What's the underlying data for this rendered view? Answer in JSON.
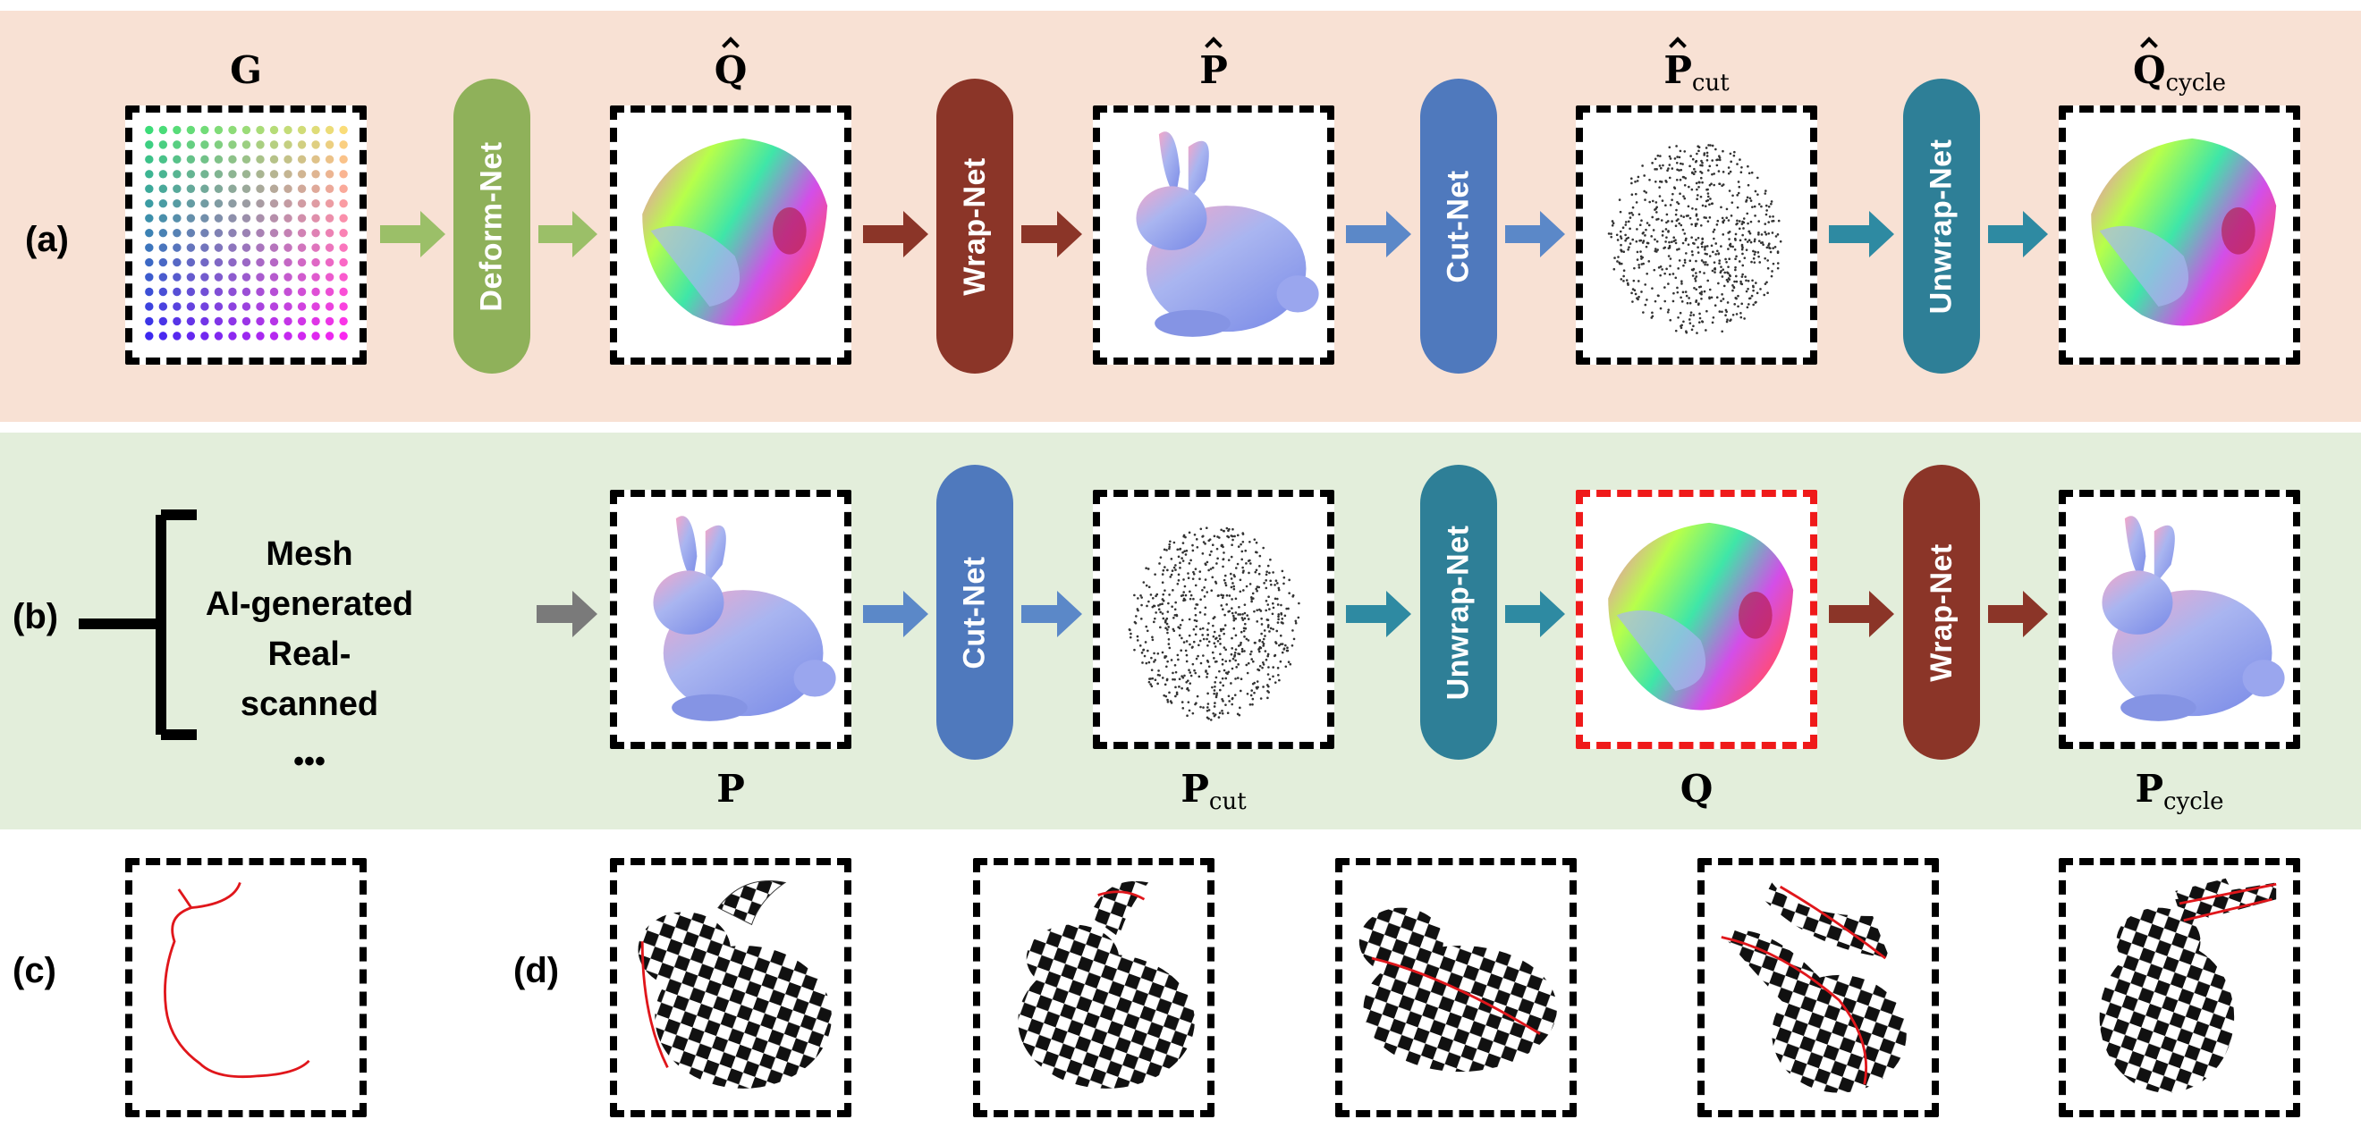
{
  "rows": {
    "a": {
      "label": "(a)",
      "nets": [
        "Deform-Net",
        "Wrap-Net",
        "Cut-Net",
        "Unwrap-Net"
      ],
      "labels": [
        {
          "main": "G",
          "sub": ""
        },
        {
          "main": "Q",
          "sub": ""
        },
        {
          "main": "P",
          "sub": ""
        },
        {
          "main": "P",
          "sub": "cut"
        },
        {
          "main": "Q",
          "sub": "cycle"
        }
      ]
    },
    "b": {
      "label": "(b)",
      "sources": [
        "Mesh",
        "AI-generated",
        "Real-scanned"
      ],
      "ellipsis": "•••",
      "nets": [
        "Cut-Net",
        "Unwrap-Net",
        "Wrap-Net"
      ],
      "labels": [
        {
          "main": "P",
          "sub": ""
        },
        {
          "main": "P",
          "sub": "cut"
        },
        {
          "main": "Q",
          "sub": ""
        },
        {
          "main": "P",
          "sub": "cycle"
        }
      ]
    },
    "c": {
      "label": "(c)"
    },
    "d": {
      "label": "(d)"
    }
  },
  "colors": {
    "band_a": "#f8e1d4",
    "band_b": "#e3eedb",
    "deform_net": "#8fb15a",
    "wrap_net": "#8b3528",
    "cut_net": "#4f79bd",
    "unwrap_net": "#2e7f97",
    "input_arrow": "#7a7a7a",
    "highlight_border": "#ef1a1a",
    "cut_seam": "#e0161b"
  }
}
